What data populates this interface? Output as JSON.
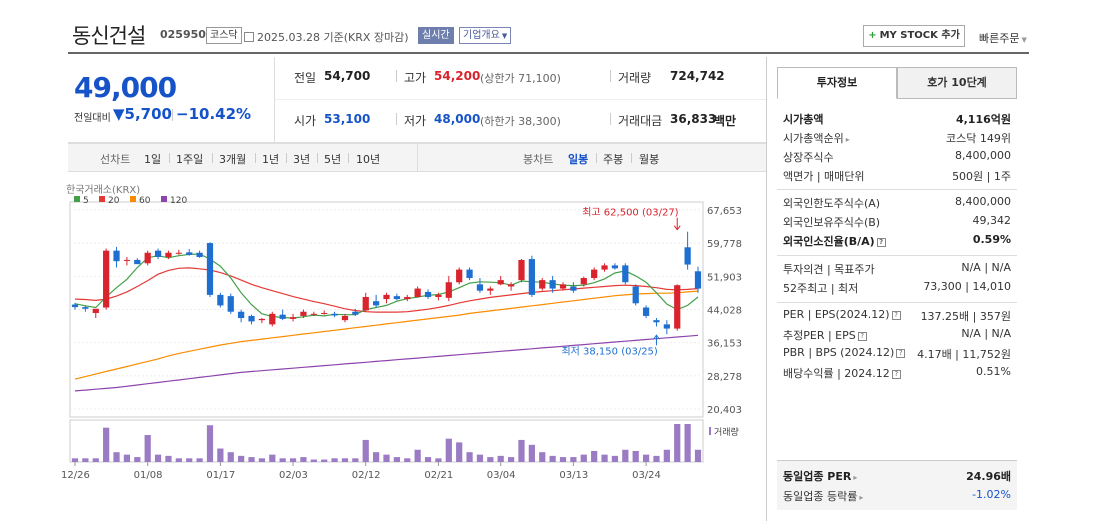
{
  "header": {
    "stock_name": "동신건설",
    "stock_code": "025950",
    "market_badge": "코스닥",
    "date_line": "2025.03.28  기준(KRX 장마감)",
    "realtime_badge": "실시간",
    "company_info_label": "기업개요",
    "mystock_label": "MY STOCK 추가",
    "mystock_plus": "+",
    "quick_order_label": "빠른주문"
  },
  "price": {
    "current": "49,000",
    "change_label": "전일대비",
    "change_value": "▼5,700",
    "change_pct": "−10.42%",
    "prev_close_label": "전일",
    "prev_close": "54,700",
    "high_label": "고가",
    "high": "54,200",
    "upper_limit": "(상한가 71,100)",
    "volume_label": "거래량",
    "volume": "724,742",
    "open_label": "시가",
    "open": "53,100",
    "low_label": "저가",
    "low": "48,000",
    "lower_limit": "(하한가 38,300)",
    "trade_amount_label": "거래대금",
    "trade_amount": "36,833",
    "trade_amount_unit": "백만"
  },
  "period_bar": {
    "line_label": "선차트",
    "line_items": [
      "1일",
      "1주일",
      "3개월",
      "1년",
      "3년",
      "5년",
      "10년"
    ],
    "candle_label": "봉차트",
    "candle_items": [
      "일봉",
      "주봉",
      "월봉"
    ],
    "active_candle": 0
  },
  "chart_data": {
    "type": "candlestick",
    "source_label": "한국거래소(KRX)",
    "ma_legend": [
      {
        "label": "5",
        "color": "#43a047"
      },
      {
        "label": "20",
        "color": "#e53935"
      },
      {
        "label": "60",
        "color": "#fb8c00"
      },
      {
        "label": "120",
        "color": "#8e44ad"
      }
    ],
    "y_ticks": [
      "67,653",
      "59,778",
      "51,903",
      "44,028",
      "36,153",
      "28,278",
      "20,403"
    ],
    "ylim": [
      20403,
      67653
    ],
    "x_ticks": [
      {
        "label": "12/26",
        "index": 0
      },
      {
        "label": "01/08",
        "index": 7
      },
      {
        "label": "01/17",
        "index": 14
      },
      {
        "label": "02/03",
        "index": 21
      },
      {
        "label": "02/12",
        "index": 28
      },
      {
        "label": "02/21",
        "index": 35
      },
      {
        "label": "03/04",
        "index": 41
      },
      {
        "label": "03/13",
        "index": 48
      },
      {
        "label": "03/24",
        "index": 55
      }
    ],
    "volume_label": "거래량",
    "max_annotation": "최고 62,500 (03/27)",
    "min_annotation": "최저 38,150 (03/25)",
    "max_index": 58,
    "max_value": 62500,
    "min_index": 56,
    "min_value": 38150,
    "up_color": "#d9232d",
    "down_color": "#1f6fd1",
    "candles": [
      {
        "o": 45200,
        "h": 45600,
        "l": 44000,
        "c": 44600
      },
      {
        "o": 44600,
        "h": 45000,
        "l": 43500,
        "c": 44200
      },
      {
        "o": 43200,
        "h": 44000,
        "l": 42000,
        "c": 44200
      },
      {
        "o": 44500,
        "h": 58500,
        "l": 44000,
        "c": 58000
      },
      {
        "o": 58000,
        "h": 58900,
        "l": 54000,
        "c": 55500
      },
      {
        "o": 55800,
        "h": 56500,
        "l": 54500,
        "c": 55800
      },
      {
        "o": 55800,
        "h": 56200,
        "l": 54800,
        "c": 54800
      },
      {
        "o": 55000,
        "h": 58000,
        "l": 54500,
        "c": 57500
      },
      {
        "o": 58000,
        "h": 58500,
        "l": 56000,
        "c": 56500
      },
      {
        "o": 56500,
        "h": 58000,
        "l": 56000,
        "c": 57500
      },
      {
        "o": 57500,
        "h": 58200,
        "l": 57000,
        "c": 57500
      },
      {
        "o": 57600,
        "h": 58400,
        "l": 56800,
        "c": 57000
      },
      {
        "o": 57500,
        "h": 58000,
        "l": 56300,
        "c": 56500
      },
      {
        "o": 59800,
        "h": 60000,
        "l": 47000,
        "c": 47500
      },
      {
        "o": 47500,
        "h": 48000,
        "l": 44500,
        "c": 45000
      },
      {
        "o": 47200,
        "h": 47800,
        "l": 43000,
        "c": 43500
      },
      {
        "o": 43500,
        "h": 44000,
        "l": 41000,
        "c": 42000
      },
      {
        "o": 42500,
        "h": 42800,
        "l": 40500,
        "c": 41200
      },
      {
        "o": 41500,
        "h": 42000,
        "l": 40800,
        "c": 41800
      },
      {
        "o": 40500,
        "h": 43500,
        "l": 40000,
        "c": 43000
      },
      {
        "o": 42800,
        "h": 44000,
        "l": 41500,
        "c": 41800
      },
      {
        "o": 41800,
        "h": 43000,
        "l": 41200,
        "c": 42200
      },
      {
        "o": 42500,
        "h": 44000,
        "l": 42000,
        "c": 43500
      },
      {
        "o": 43000,
        "h": 43500,
        "l": 42500,
        "c": 43000
      },
      {
        "o": 43200,
        "h": 43800,
        "l": 42800,
        "c": 43200
      },
      {
        "o": 43000,
        "h": 43500,
        "l": 42200,
        "c": 42600
      },
      {
        "o": 41500,
        "h": 43000,
        "l": 41000,
        "c": 42500
      },
      {
        "o": 43500,
        "h": 44200,
        "l": 42500,
        "c": 42800
      },
      {
        "o": 43800,
        "h": 48000,
        "l": 43500,
        "c": 47000
      },
      {
        "o": 46000,
        "h": 47500,
        "l": 44500,
        "c": 45000
      },
      {
        "o": 46500,
        "h": 48000,
        "l": 45500,
        "c": 47500
      },
      {
        "o": 47200,
        "h": 47800,
        "l": 46200,
        "c": 46500
      },
      {
        "o": 46500,
        "h": 47500,
        "l": 46000,
        "c": 47000
      },
      {
        "o": 47000,
        "h": 49500,
        "l": 46800,
        "c": 49000
      },
      {
        "o": 48200,
        "h": 48800,
        "l": 46500,
        "c": 47000
      },
      {
        "o": 47000,
        "h": 48000,
        "l": 46200,
        "c": 47500
      },
      {
        "o": 46800,
        "h": 52000,
        "l": 46000,
        "c": 50500
      },
      {
        "o": 50500,
        "h": 54000,
        "l": 50000,
        "c": 53500
      },
      {
        "o": 53500,
        "h": 54000,
        "l": 51000,
        "c": 51500
      },
      {
        "o": 50000,
        "h": 51500,
        "l": 48000,
        "c": 48500
      },
      {
        "o": 48500,
        "h": 49500,
        "l": 47500,
        "c": 49000
      },
      {
        "o": 50000,
        "h": 52000,
        "l": 49800,
        "c": 51000
      },
      {
        "o": 49500,
        "h": 50500,
        "l": 48500,
        "c": 50000
      },
      {
        "o": 51000,
        "h": 56000,
        "l": 50500,
        "c": 55800
      },
      {
        "o": 56000,
        "h": 56800,
        "l": 47000,
        "c": 47500
      },
      {
        "o": 49000,
        "h": 51500,
        "l": 48500,
        "c": 51000
      },
      {
        "o": 51000,
        "h": 52000,
        "l": 48000,
        "c": 49000
      },
      {
        "o": 49000,
        "h": 50500,
        "l": 48500,
        "c": 50000
      },
      {
        "o": 49500,
        "h": 50500,
        "l": 48000,
        "c": 48500
      },
      {
        "o": 50000,
        "h": 51800,
        "l": 49500,
        "c": 51500
      },
      {
        "o": 51500,
        "h": 54000,
        "l": 51000,
        "c": 53500
      },
      {
        "o": 53500,
        "h": 55000,
        "l": 53000,
        "c": 54500
      },
      {
        "o": 54500,
        "h": 55000,
        "l": 53500,
        "c": 53800
      },
      {
        "o": 54500,
        "h": 55000,
        "l": 50000,
        "c": 50500
      },
      {
        "o": 49500,
        "h": 50000,
        "l": 45000,
        "c": 45500
      },
      {
        "o": 44500,
        "h": 45000,
        "l": 42000,
        "c": 42500
      },
      {
        "o": 41500,
        "h": 42000,
        "l": 40000,
        "c": 41000
      },
      {
        "o": 40500,
        "h": 41500,
        "l": 38150,
        "c": 39500
      },
      {
        "o": 39500,
        "h": 50000,
        "l": 39000,
        "c": 49800
      },
      {
        "o": 58800,
        "h": 62500,
        "l": 53500,
        "c": 54700
      },
      {
        "o": 53100,
        "h": 54200,
        "l": 48000,
        "c": 49000
      }
    ],
    "volumes": [
      3,
      3,
      3,
      28,
      8,
      6,
      4,
      22,
      6,
      5,
      3,
      3,
      3,
      30,
      11,
      8,
      5,
      4,
      3,
      6,
      3,
      3,
      4,
      2,
      2,
      3,
      3,
      3,
      18,
      8,
      6,
      4,
      3,
      10,
      4,
      3,
      19,
      16,
      8,
      6,
      4,
      5,
      4,
      18,
      14,
      8,
      5,
      4,
      4,
      6,
      9,
      6,
      5,
      10,
      9,
      6,
      5,
      10,
      31,
      31,
      10
    ],
    "ma5": [
      45400,
      44900,
      44500,
      47000,
      49200,
      51200,
      54000,
      56300,
      56800,
      56300,
      56800,
      57100,
      57200,
      56000,
      54300,
      51500,
      48000,
      45200,
      43000,
      42400,
      42100,
      42000,
      42300,
      42700,
      42500,
      42900,
      42800,
      42800,
      44000,
      44500,
      45000,
      46000,
      46600,
      47000,
      47400,
      47600,
      48200,
      49200,
      50300,
      50600,
      50500,
      50400,
      49800,
      50800,
      50600,
      50500,
      50100,
      49800,
      49700,
      49800,
      50400,
      51300,
      52700,
      53200,
      52000,
      50500,
      48000,
      45300,
      44000,
      45000,
      47000
    ],
    "ma20": [
      46500,
      46400,
      46200,
      46500,
      47200,
      48200,
      49500,
      50900,
      52400,
      53300,
      53800,
      53900,
      53700,
      53400,
      52800,
      52000,
      51000,
      50000,
      49200,
      48500,
      47800,
      47100,
      46500,
      45900,
      45400,
      44800,
      44200,
      43800,
      43500,
      43400,
      43400,
      43400,
      43500,
      43800,
      44100,
      44500,
      45000,
      45600,
      46100,
      46500,
      46900,
      47200,
      47500,
      47800,
      48100,
      48300,
      48500,
      48700,
      48900,
      49100,
      49300,
      49500,
      49700,
      49800,
      49700,
      49500,
      49200,
      48800,
      48700,
      48800,
      49000
    ],
    "ma60": [
      27500,
      28100,
      28700,
      29300,
      29900,
      30500,
      31100,
      31700,
      32300,
      33000,
      33600,
      34100,
      34600,
      35100,
      35600,
      36000,
      36400,
      36700,
      37000,
      37300,
      37600,
      37900,
      38200,
      38500,
      38800,
      39100,
      39400,
      39700,
      40000,
      40300,
      40600,
      40900,
      41200,
      41500,
      41800,
      42100,
      42400,
      42700,
      43100,
      43400,
      43700,
      44000,
      44300,
      44600,
      44900,
      45200,
      45500,
      45800,
      46100,
      46400,
      46700,
      47000,
      47300,
      47500,
      47700,
      47800,
      47900,
      47900,
      48000,
      48200,
      48400
    ],
    "ma120": [
      24700,
      24900,
      25100,
      25300,
      25500,
      25800,
      26100,
      26400,
      26700,
      27000,
      27300,
      27600,
      27900,
      28200,
      28500,
      28800,
      29100,
      29300,
      29500,
      29700,
      29900,
      30100,
      30300,
      30500,
      30700,
      30900,
      31100,
      31300,
      31500,
      31700,
      31900,
      32100,
      32300,
      32500,
      32700,
      32900,
      33100,
      33300,
      33500,
      33700,
      33900,
      34100,
      34300,
      34500,
      34700,
      34900,
      35100,
      35300,
      35500,
      35700,
      35900,
      36100,
      36300,
      36500,
      36700,
      36900,
      37100,
      37300,
      37500,
      37700,
      37900
    ]
  },
  "right_panel": {
    "tab_invest": "투자정보",
    "tab_quote": "호가 10단계",
    "rows": [
      {
        "label": "시가총액",
        "value": "4,116억원",
        "bold": true
      },
      {
        "label": "시가총액순위",
        "value": "코스닥 149위",
        "arrow": true
      },
      {
        "label": "상장주식수",
        "value": "8,400,000"
      },
      {
        "label": "액면가 | 매매단위",
        "value": "500원 | 1주"
      },
      {
        "label": "외국인한도주식수(A)",
        "value": "8,400,000"
      },
      {
        "label": "외국인보유주식수(B)",
        "value": "49,342"
      },
      {
        "label": "외국인소진율(B/A)",
        "value": "0.59%",
        "bold": true,
        "help": true
      },
      {
        "label": "투자의견 | 목표주가",
        "value": "N/A | N/A"
      },
      {
        "label": "52주최고 | 최저",
        "value": "73,300 | 14,010"
      },
      {
        "label": "PER | EPS(2024.12)",
        "value": "137.25배 | 357원",
        "help": true
      },
      {
        "label": "추정PER | EPS",
        "value": "N/A | N/A",
        "help": true
      },
      {
        "label": "PBR | BPS (2024.12)",
        "value": "4.17배 | 11,752원",
        "help": true
      },
      {
        "label": "배당수익률 | 2024.12",
        "value": "0.51%",
        "help": true
      }
    ],
    "peer_per_label": "동일업종 PER",
    "peer_per_value": "24.96배",
    "peer_change_label": "동일업종 등락률",
    "peer_change_value": "-1.02%"
  }
}
